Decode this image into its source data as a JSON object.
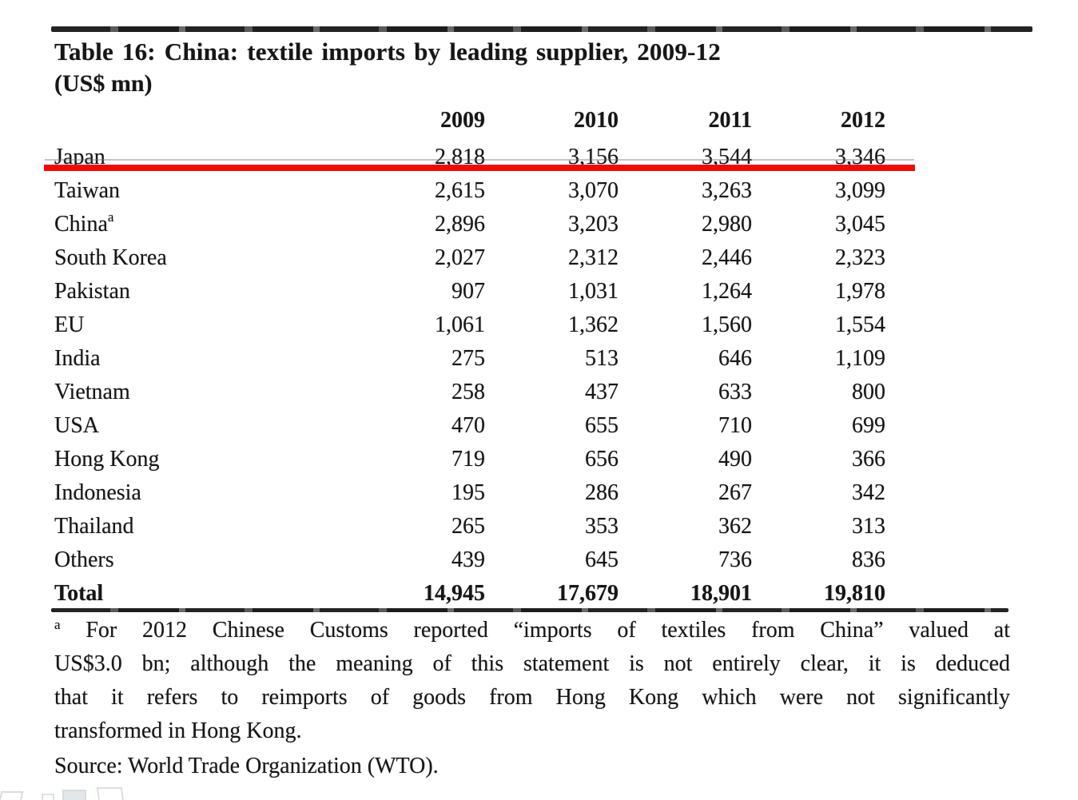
{
  "page": {
    "title": "Table 16: China: textile imports by leading supplier, 2009-12",
    "subtitle": "(US$ mn)"
  },
  "table": {
    "columns": [
      "2009",
      "2010",
      "2011",
      "2012"
    ],
    "rows": [
      {
        "label": "Japan",
        "sup": "",
        "values": [
          "2,818",
          "3,156",
          "3,544",
          "3,346"
        ],
        "bold": false,
        "highlighted": true
      },
      {
        "label": "Taiwan",
        "sup": "",
        "values": [
          "2,615",
          "3,070",
          "3,263",
          "3,099"
        ],
        "bold": false,
        "highlighted": false
      },
      {
        "label": "China",
        "sup": "a",
        "values": [
          "2,896",
          "3,203",
          "2,980",
          "3,045"
        ],
        "bold": false,
        "highlighted": false
      },
      {
        "label": "South Korea",
        "sup": "",
        "values": [
          "2,027",
          "2,312",
          "2,446",
          "2,323"
        ],
        "bold": false,
        "highlighted": false
      },
      {
        "label": "Pakistan",
        "sup": "",
        "values": [
          "907",
          "1,031",
          "1,264",
          "1,978"
        ],
        "bold": false,
        "highlighted": false
      },
      {
        "label": "EU",
        "sup": "",
        "values": [
          "1,061",
          "1,362",
          "1,560",
          "1,554"
        ],
        "bold": false,
        "highlighted": false
      },
      {
        "label": "India",
        "sup": "",
        "values": [
          "275",
          "513",
          "646",
          "1,109"
        ],
        "bold": false,
        "highlighted": false
      },
      {
        "label": "Vietnam",
        "sup": "",
        "values": [
          "258",
          "437",
          "633",
          "800"
        ],
        "bold": false,
        "highlighted": false
      },
      {
        "label": "USA",
        "sup": "",
        "values": [
          "470",
          "655",
          "710",
          "699"
        ],
        "bold": false,
        "highlighted": false
      },
      {
        "label": "Hong Kong",
        "sup": "",
        "values": [
          "719",
          "656",
          "490",
          "366"
        ],
        "bold": false,
        "highlighted": false
      },
      {
        "label": "Indonesia",
        "sup": "",
        "values": [
          "195",
          "286",
          "267",
          "342"
        ],
        "bold": false,
        "highlighted": false
      },
      {
        "label": "Thailand",
        "sup": "",
        "values": [
          "265",
          "353",
          "362",
          "313"
        ],
        "bold": false,
        "highlighted": false
      },
      {
        "label": "Others",
        "sup": "",
        "values": [
          "439",
          "645",
          "736",
          "836"
        ],
        "bold": false,
        "highlighted": false
      },
      {
        "label": "Total",
        "sup": "",
        "values": [
          "14,945",
          "17,679",
          "18,901",
          "19,810"
        ],
        "bold": true,
        "highlighted": false
      }
    ]
  },
  "annotation": {
    "type": "red-underline",
    "target_row": "Japan",
    "color": "#ee0b0b"
  },
  "footnote": {
    "marker": "a",
    "lines": [
      "For 2012 Chinese Customs reported “imports of textiles from China” valued at",
      "US$3.0 bn; although the meaning of this statement is not entirely clear, it is deduced",
      "that it refers to reimports of goods from Hong Kong which were not significantly",
      "transformed in Hong Kong."
    ]
  },
  "source": "Source: World Trade Organization (WTO)."
}
